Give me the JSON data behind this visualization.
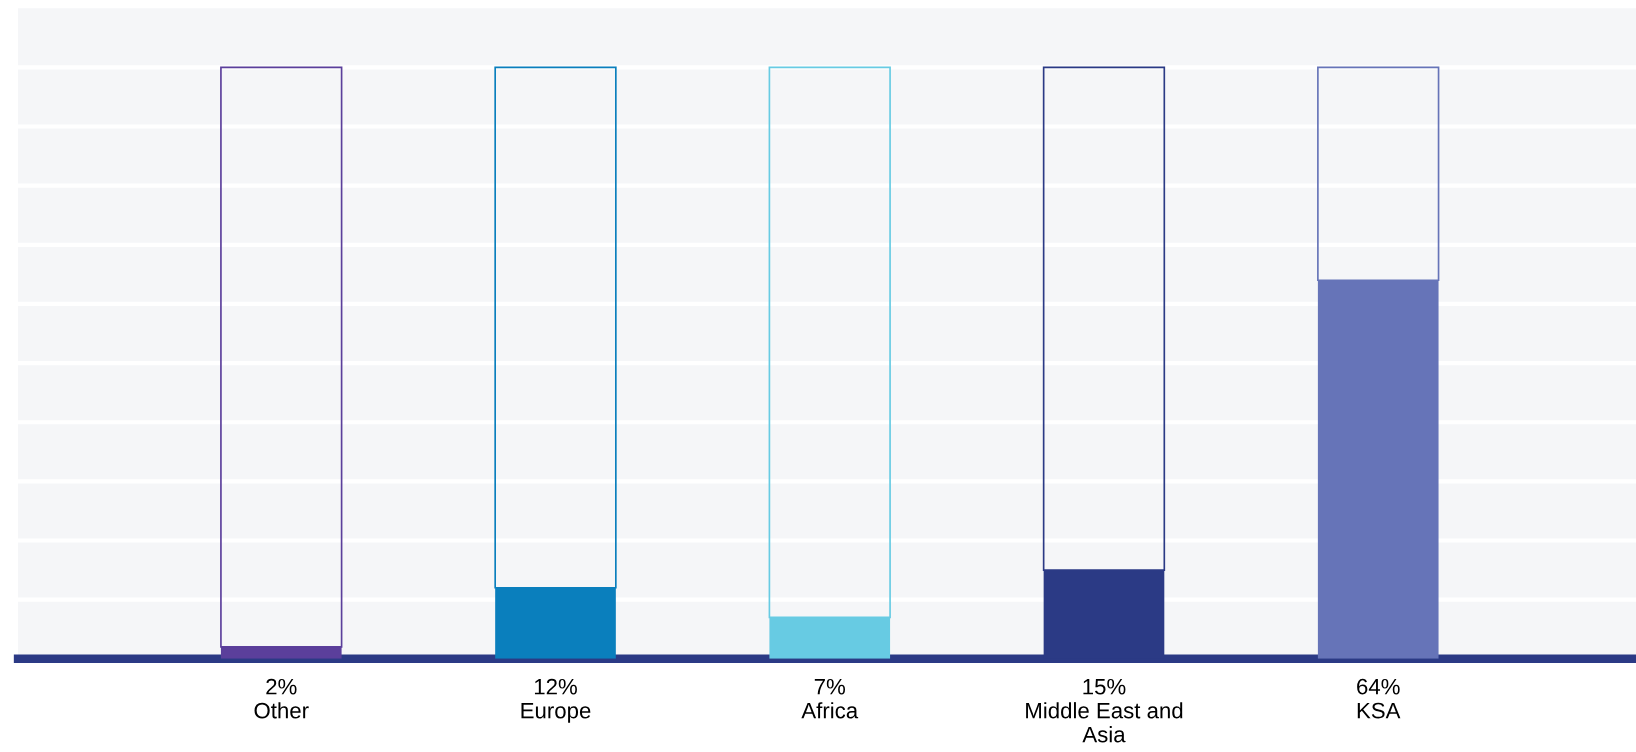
{
  "chart_data": {
    "type": "bar",
    "categories": [
      "Other",
      "Europe",
      "Africa",
      "Middle East and Asia",
      "KSA"
    ],
    "stacked": true,
    "series": [
      {
        "values": [
          2,
          12,
          7,
          15,
          64
        ],
        "colors": [
          "#5b3f9b",
          "#0a7fbd",
          "#67cbe3",
          "#2b3a85",
          "#6674b8"
        ],
        "value_labels": [
          "2%",
          "12%",
          "7%",
          "15%",
          "64%"
        ]
      },
      {
        "values": [
          98,
          88,
          93,
          85,
          36
        ],
        "colors": [
          "#5b3f9b",
          "#0a7fbd",
          "#67cbe3",
          "#2b3a85",
          "#6674b8"
        ]
      }
    ],
    "ylim": [
      0,
      110
    ],
    "yticks": [
      0,
      10,
      20,
      30,
      40,
      50,
      60,
      70,
      80,
      90,
      100
    ],
    "tick_labels": "x",
    "grid": "y",
    "legend": false
  }
}
